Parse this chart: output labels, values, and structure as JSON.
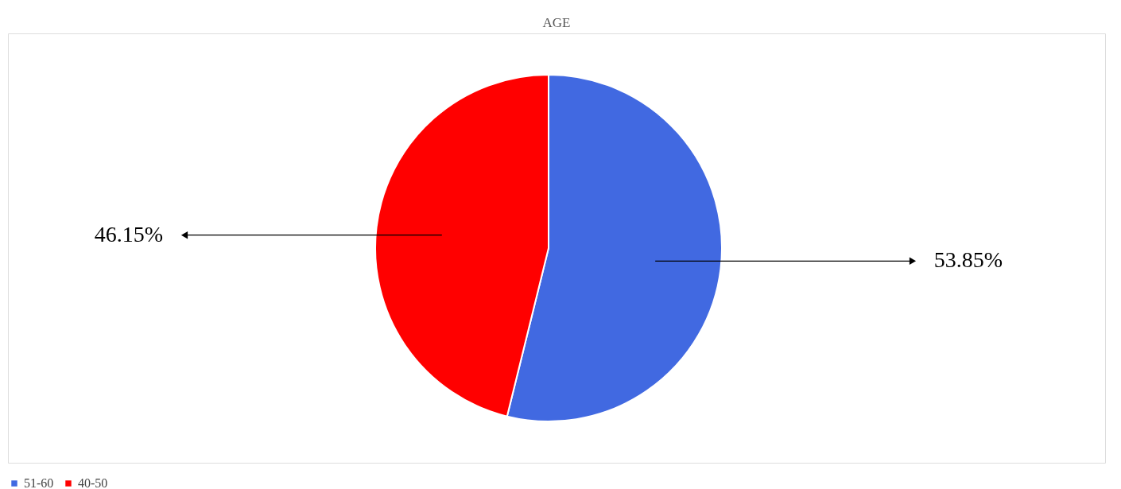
{
  "chart_data": {
    "type": "pie",
    "title": "AGE",
    "categories": [
      "51-60",
      "40-50"
    ],
    "values": [
      53.85,
      46.15
    ],
    "colors": [
      "#4169e1",
      "#ff0000"
    ],
    "value_labels": [
      "53.85%",
      "46.15%"
    ],
    "legend": "bottom"
  }
}
